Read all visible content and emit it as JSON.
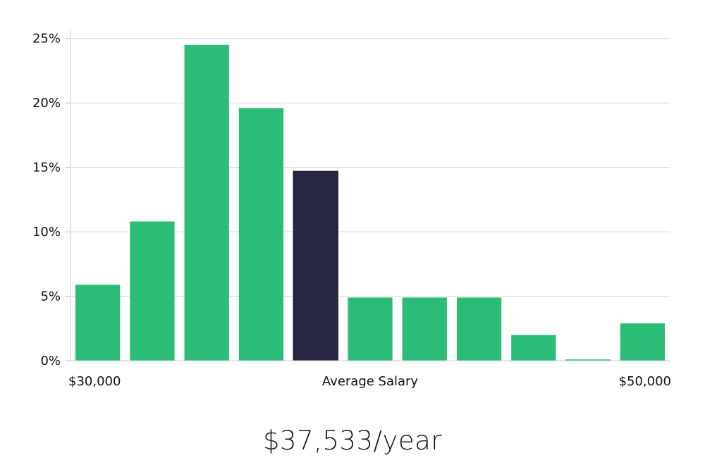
{
  "chart_data": {
    "type": "bar",
    "title": "",
    "xlabel": "Average Salary",
    "ylabel": "",
    "x_range_labels": {
      "min": "$30,000",
      "max": "$50,000"
    },
    "y_ticks": [
      "0%",
      "5%",
      "10%",
      "15%",
      "20%",
      "25%"
    ],
    "ylim": [
      0,
      25.8
    ],
    "values": [
      5.9,
      10.8,
      24.5,
      19.6,
      14.7,
      4.9,
      4.9,
      4.9,
      2.0,
      0.1,
      2.9
    ],
    "highlight_index": 4,
    "grid": true,
    "colors": {
      "bar": "#2bbd77",
      "highlight": "#272643",
      "grid": "#dddddd",
      "axis": "#cccccc",
      "text": "#111111"
    }
  },
  "caption": {
    "average_salary": "$37,533/year"
  }
}
